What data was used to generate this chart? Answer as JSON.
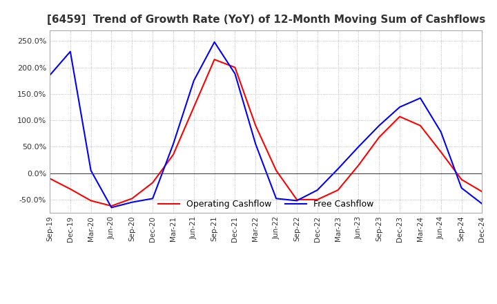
{
  "title": "[6459]  Trend of Growth Rate (YoY) of 12-Month Moving Sum of Cashflows",
  "title_fontsize": 11,
  "x_labels": [
    "Sep-19",
    "Dec-19",
    "Mar-20",
    "Jun-20",
    "Sep-20",
    "Dec-20",
    "Mar-21",
    "Jun-21",
    "Sep-21",
    "Dec-21",
    "Mar-22",
    "Jun-22",
    "Sep-22",
    "Dec-22",
    "Mar-23",
    "Jun-23",
    "Sep-23",
    "Dec-23",
    "Mar-24",
    "Jun-24",
    "Sep-24",
    "Dec-24"
  ],
  "ylim": [
    -75,
    270
  ],
  "yticks": [
    -50.0,
    0.0,
    50.0,
    100.0,
    150.0,
    200.0,
    250.0
  ],
  "operating_cashflow": [
    -10,
    -30,
    -52,
    -62,
    -48,
    -18,
    35,
    125,
    215,
    200,
    90,
    5,
    -50,
    -50,
    -32,
    15,
    68,
    107,
    90,
    40,
    -12,
    -35
  ],
  "free_cashflow": [
    185,
    230,
    5,
    -65,
    -55,
    -48,
    55,
    175,
    248,
    188,
    55,
    -48,
    -52,
    -32,
    8,
    50,
    90,
    125,
    142,
    78,
    -28,
    -58
  ],
  "op_color": "#ff0000",
  "fc_color": "#0000ff",
  "grid_color": "#aaaaaa",
  "zero_line_color": "#444444",
  "background_color": "#ffffff",
  "legend_op": "Operating Cashflow",
  "legend_fc": "Free Cashflow",
  "line_width": 1.5
}
